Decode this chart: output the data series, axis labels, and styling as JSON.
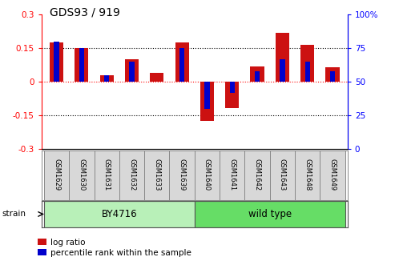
{
  "title": "GDS93 / 919",
  "samples": [
    "GSM1629",
    "GSM1630",
    "GSM1631",
    "GSM1632",
    "GSM1633",
    "GSM1639",
    "GSM1640",
    "GSM1641",
    "GSM1642",
    "GSM1643",
    "GSM1648",
    "GSM1649"
  ],
  "log_ratio": [
    0.175,
    0.152,
    0.03,
    0.1,
    0.04,
    0.175,
    -0.175,
    -0.115,
    0.07,
    0.22,
    0.165,
    0.065
  ],
  "percentile_rank_pct": [
    80,
    75,
    55,
    65,
    50,
    75,
    30,
    42,
    58,
    67,
    65,
    58
  ],
  "strain_groups": [
    {
      "label": "BY4716",
      "start": 0,
      "end": 6,
      "color": "#b8f0b8"
    },
    {
      "label": "wild type",
      "start": 6,
      "end": 12,
      "color": "#66dd66"
    }
  ],
  "bar_color_red": "#cc1111",
  "bar_color_blue": "#0000cc",
  "ylim_left": [
    -0.3,
    0.3
  ],
  "ylim_right": [
    0,
    100
  ],
  "yticks_left": [
    -0.3,
    -0.15,
    0,
    0.15,
    0.3
  ],
  "yticks_right": [
    0,
    25,
    50,
    75,
    100
  ],
  "legend_items": [
    "log ratio",
    "percentile rank within the sample"
  ],
  "strain_label": "strain",
  "bar_width": 0.55,
  "blue_bar_width": 0.2
}
